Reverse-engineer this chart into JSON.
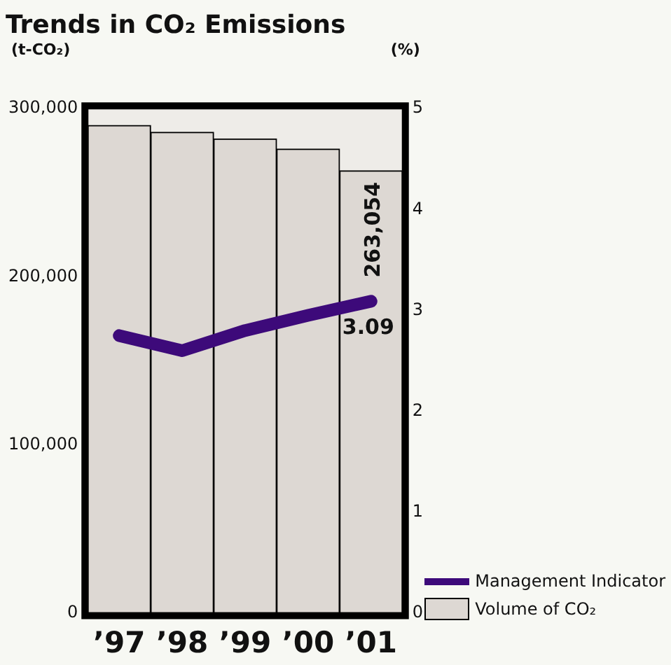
{
  "chart_data": {
    "type": "bar",
    "title": "Trends in CO₂ Emissions",
    "ylabel": "(t-CO₂)",
    "y2label": "(%)",
    "categories": [
      "’97",
      "’98",
      "’99",
      "’00",
      "’01"
    ],
    "series": [
      {
        "name": "Volume of CO₂",
        "color": "#ddd8d3",
        "values": [
          290000,
          286000,
          282000,
          276000,
          263054
        ],
        "value_labels": [
          null,
          null,
          null,
          null,
          "263,054"
        ]
      },
      {
        "name": "Management Indicator",
        "type": "line",
        "axis": "y2",
        "color": "#3d0a7a",
        "values": [
          2.75,
          2.6,
          2.8,
          2.95,
          3.09
        ],
        "value_labels": [
          null,
          null,
          null,
          null,
          "3.09"
        ]
      }
    ],
    "ylim": [
      0,
      300000
    ],
    "yticks": [
      {
        "value": 0,
        "label": "0"
      },
      {
        "value": 100000,
        "label": "100,000"
      },
      {
        "value": 200000,
        "label": "200,000"
      },
      {
        "value": 300000,
        "label": "300,000"
      }
    ],
    "y2lim": [
      0,
      5
    ],
    "y2ticks": [
      0,
      1,
      2,
      3,
      4,
      5
    ],
    "grid": false,
    "legend": "bottom right"
  }
}
